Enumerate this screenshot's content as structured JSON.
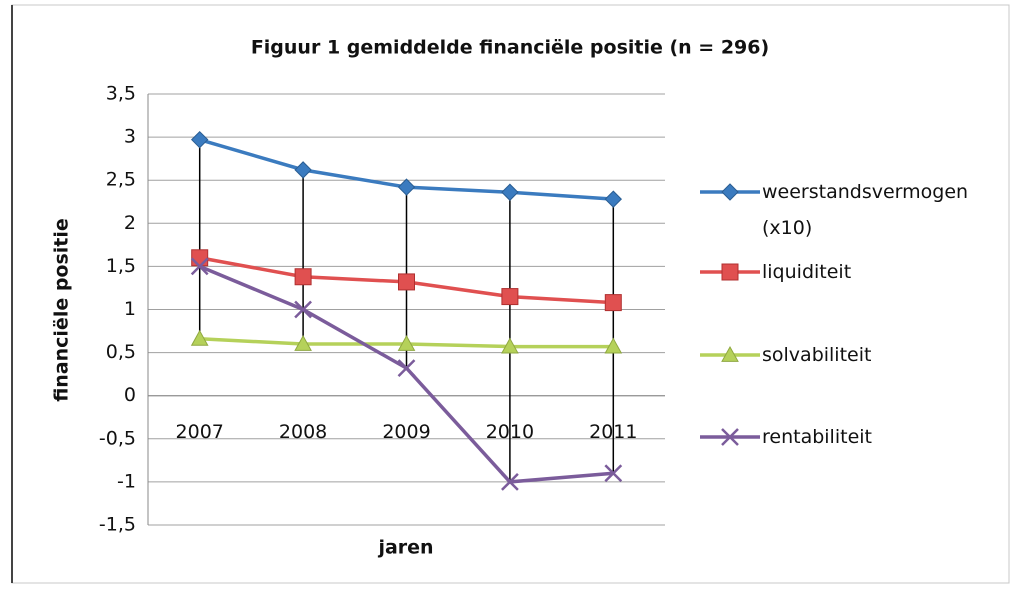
{
  "chart_data": {
    "type": "line",
    "title": "Figuur 1 gemiddelde financiële positie (n = 296)",
    "x_label": "jaren",
    "y_label": "financiële positie",
    "categories": [
      "2007",
      "2008",
      "2009",
      "2010",
      "2011"
    ],
    "series": [
      {
        "name": "weerstandsvermogen (x10)",
        "color": "#3b7bbf",
        "marker": "diamond",
        "values": [
          2.97,
          2.62,
          2.42,
          2.36,
          2.28
        ]
      },
      {
        "name": "liquiditeit",
        "color": "#e05050",
        "marker": "square",
        "values": [
          1.6,
          1.38,
          1.32,
          1.15,
          1.08
        ]
      },
      {
        "name": "solvabiliteit",
        "color": "#b5d15a",
        "marker": "triangle",
        "values": [
          0.66,
          0.6,
          0.6,
          0.57,
          0.57
        ]
      },
      {
        "name": "rentabiliteit",
        "color": "#7b5c9b",
        "marker": "x",
        "values": [
          1.5,
          1.0,
          0.32,
          -1.0,
          -0.9
        ]
      }
    ],
    "ylim": [
      -1.5,
      3.5
    ],
    "yticks": [
      {
        "value": -1.5,
        "label": "-1,5"
      },
      -1,
      {
        "value": -0.5,
        "label": "-0,5"
      },
      0,
      {
        "value": 0.5,
        "label": "0,5"
      },
      1,
      {
        "value": 1.5,
        "label": "1,5"
      },
      2,
      {
        "value": 2.5,
        "label": "2,5"
      },
      3,
      {
        "value": 3.5,
        "label": "3,5"
      }
    ],
    "grid": true,
    "high_low_lines": true,
    "legend": "right"
  }
}
